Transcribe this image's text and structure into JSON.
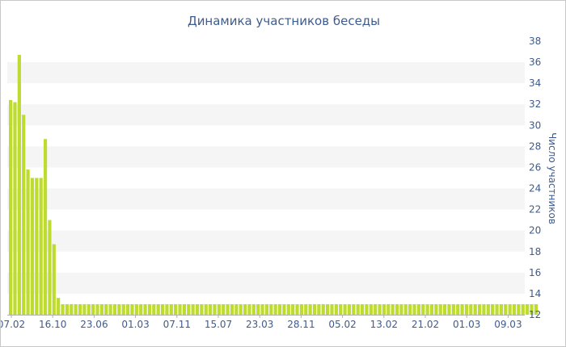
{
  "chart_data": {
    "type": "bar",
    "title": "Динамика участников беседы",
    "xlabel": "",
    "ylabel": "Число участников",
    "ylim": [
      12,
      38
    ],
    "yticks": [
      12,
      14,
      16,
      18,
      20,
      22,
      24,
      26,
      28,
      30,
      32,
      34,
      36,
      38
    ],
    "y_axis_position": "right",
    "grid": "horizontal alternating bands",
    "x_tick_labels": [
      "07.02",
      "16.10",
      "23.06",
      "01.03",
      "07.11",
      "15.07",
      "23.03",
      "28.11",
      "05.02",
      "13.02",
      "21.02",
      "01.03",
      "09.03"
    ],
    "values": [
      32.4,
      32.2,
      36.7,
      31.0,
      25.8,
      25.0,
      25.0,
      25.0,
      28.7,
      21.0,
      18.7,
      13.6,
      13.0,
      13.0,
      13.0,
      13.0,
      13.0,
      13.0,
      13.0,
      13.0,
      13.0,
      13.0,
      13.0,
      13.0,
      13.0,
      13.0,
      13.0,
      13.0,
      13.0,
      13.0,
      13.0,
      13.0,
      13.0,
      13.0,
      13.0,
      13.0,
      13.0,
      13.0,
      13.0,
      13.0,
      13.0,
      13.0,
      13.0,
      13.0,
      13.0,
      13.0,
      13.0,
      13.0,
      13.0,
      13.0,
      13.0,
      13.0,
      13.0,
      13.0,
      13.0,
      13.0,
      13.0,
      13.0,
      13.0,
      13.0,
      13.0,
      13.0,
      13.0,
      13.0,
      13.0,
      13.0,
      13.0,
      13.0,
      13.0,
      13.0,
      13.0,
      13.0,
      13.0,
      13.0,
      13.0,
      13.0,
      13.0,
      13.0,
      13.0,
      13.0,
      13.0,
      13.0,
      13.0,
      13.0,
      13.0,
      13.0,
      13.0,
      13.0,
      13.0,
      13.0,
      13.0,
      13.0,
      13.0,
      13.0,
      13.0,
      13.0,
      13.0,
      13.0,
      13.0,
      13.0,
      13.0,
      13.0,
      13.0,
      13.0,
      13.0,
      13.0,
      13.0,
      13.0,
      13.0,
      13.0,
      13.0,
      13.0,
      13.0,
      13.0,
      13.0,
      13.0,
      13.0,
      13.0,
      13.0,
      13.0,
      13.0,
      13.0
    ],
    "bar_color": "#bddc2f",
    "band_color": "#f5f5f5",
    "text_color": "#3e5b8f"
  }
}
